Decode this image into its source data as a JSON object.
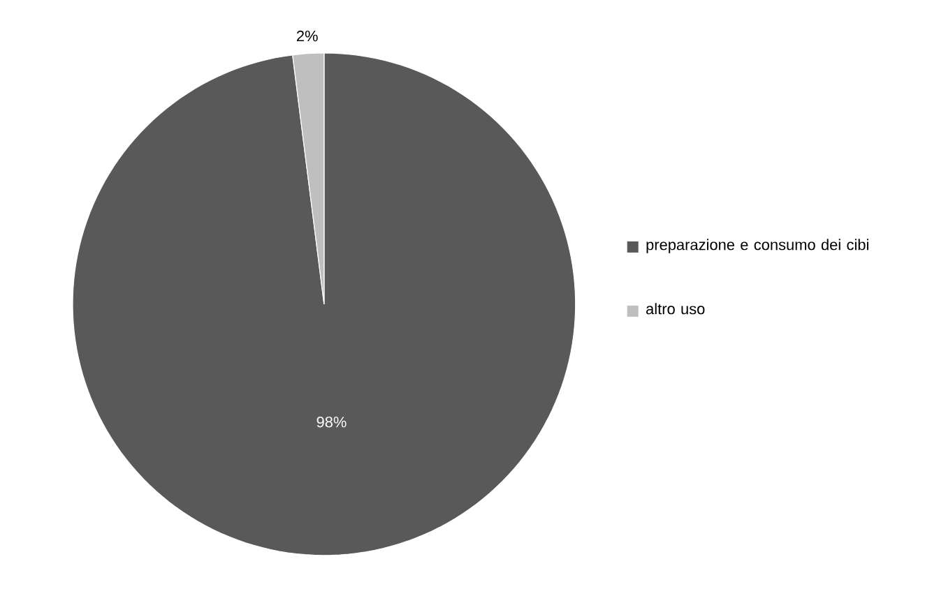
{
  "chart_data": {
    "type": "pie",
    "categories": [
      "preparazione e consumo dei cibi",
      "altro uso"
    ],
    "values": [
      98,
      2
    ],
    "colors": [
      "#595959",
      "#bfbfbf"
    ],
    "value_labels": [
      "98%",
      "2%"
    ],
    "legend": "right"
  }
}
